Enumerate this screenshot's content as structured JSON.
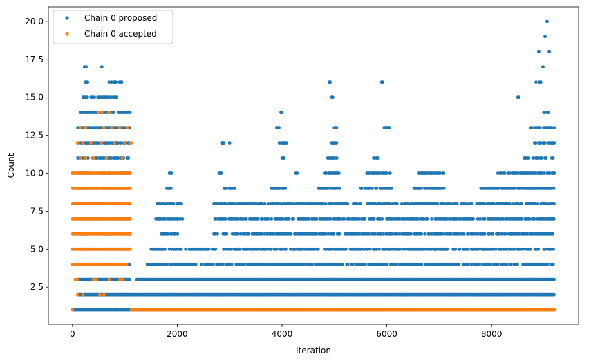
{
  "chart_data": {
    "type": "scatter",
    "title": "",
    "xlabel": "Iteration",
    "ylabel": "Count",
    "xlim": [
      -460,
      9660
    ],
    "ylim": [
      0.05,
      20.95
    ],
    "xticks": [
      0,
      2000,
      4000,
      6000,
      8000
    ],
    "yticks": [
      2.5,
      5.0,
      7.5,
      10.0,
      12.5,
      15.0,
      17.5,
      20.0
    ],
    "xtick_labels": [
      "0",
      "2000",
      "4000",
      "6000",
      "8000"
    ],
    "ytick_labels": [
      "2.5",
      "5.0",
      "7.5",
      "10.0",
      "12.5",
      "15.0",
      "17.5",
      "20.0"
    ],
    "grid": false,
    "legend_position": "top-left",
    "x_total": 9200,
    "series": [
      {
        "name": "Chain 0 proposed",
        "color": "#1f77b4",
        "description_of_density": "dense bands per integer count",
        "bands": [
          {
            "y": 1,
            "ranges": [
              [
                0,
                9200
              ]
            ]
          },
          {
            "y": 2,
            "ranges": [
              [
                100,
                1100
              ],
              [
                1120,
                9200
              ]
            ]
          },
          {
            "y": 3,
            "ranges": [
              [
                100,
                1100
              ],
              [
                1230,
                9200
              ]
            ]
          },
          {
            "y": 4,
            "ranges": [
              [
                100,
                1100
              ],
              [
                1430,
                9200
              ]
            ]
          },
          {
            "y": 5,
            "ranges": [
              [
                100,
                1100
              ],
              [
                1500,
                9200
              ]
            ]
          },
          {
            "y": 6,
            "ranges": [
              [
                100,
                1100
              ],
              [
                1700,
                2100
              ],
              [
                2700,
                9200
              ]
            ]
          },
          {
            "y": 7,
            "ranges": [
              [
                100,
                1100
              ],
              [
                1550,
                2100
              ],
              [
                2700,
                9200
              ]
            ]
          },
          {
            "y": 8,
            "ranges": [
              [
                100,
                1100
              ],
              [
                1600,
                2100
              ],
              [
                2700,
                9200
              ]
            ]
          },
          {
            "y": 9,
            "ranges": [
              [
                100,
                1100
              ],
              [
                1800,
                1900
              ],
              [
                2900,
                3100
              ],
              [
                3800,
                4100
              ],
              [
                4700,
                5100
              ],
              [
                5500,
                6100
              ],
              [
                6500,
                7100
              ],
              [
                7800,
                9200
              ]
            ]
          },
          {
            "y": 10,
            "ranges": [
              [
                100,
                1100
              ],
              [
                1850,
                1900
              ],
              [
                2800,
                2850
              ],
              [
                4200,
                4300
              ],
              [
                4800,
                5100
              ],
              [
                5600,
                6100
              ],
              [
                6600,
                7100
              ],
              [
                8100,
                9200
              ]
            ]
          },
          {
            "y": 11,
            "ranges": [
              [
                100,
                1100
              ],
              [
                4000,
                4050
              ],
              [
                4850,
                5050
              ],
              [
                5750,
                5850
              ],
              [
                8600,
                9200
              ]
            ]
          },
          {
            "y": 12,
            "ranges": [
              [
                100,
                1100
              ],
              [
                2850,
                2900
              ],
              [
                3950,
                4100
              ],
              [
                4950,
                5050
              ],
              [
                8800,
                9200
              ]
            ]
          },
          {
            "y": 13,
            "ranges": [
              [
                100,
                1100
              ],
              [
                3900,
                3950
              ],
              [
                5000,
                5050
              ],
              [
                5950,
                6050
              ],
              [
                8750,
                9200
              ]
            ]
          },
          {
            "y": 14,
            "ranges": [
              [
                150,
                1100
              ],
              [
                3980,
                4000
              ],
              [
                9000,
                9100
              ]
            ]
          },
          {
            "y": 15,
            "ranges": [
              [
                200,
                850
              ],
              [
                4950,
                4970
              ],
              [
                8500,
                8520
              ]
            ]
          },
          {
            "y": 16,
            "ranges": [
              [
                250,
                300
              ],
              [
                700,
                950
              ],
              [
                4900,
                4920
              ],
              [
                5900,
                5920
              ],
              [
                8850,
                8950
              ]
            ]
          }
        ],
        "sparse_points": [
          {
            "x": 0,
            "y": 10
          },
          {
            "x": 230,
            "y": 17
          },
          {
            "x": 260,
            "y": 17
          },
          {
            "x": 560,
            "y": 17
          },
          {
            "x": 8900,
            "y": 18
          },
          {
            "x": 9100,
            "y": 18
          },
          {
            "x": 8980,
            "y": 17
          },
          {
            "x": 9020,
            "y": 19
          },
          {
            "x": 9060,
            "y": 20
          },
          {
            "x": 3980,
            "y": 14
          },
          {
            "x": 4050,
            "y": 12
          },
          {
            "x": 6000,
            "y": 13
          },
          {
            "x": 6050,
            "y": 13
          },
          {
            "x": 2850,
            "y": 12
          },
          {
            "x": 3000,
            "y": 12
          },
          {
            "x": 1840,
            "y": 9
          },
          {
            "x": 1880,
            "y": 9
          }
        ]
      },
      {
        "name": "Chain 0 accepted",
        "color": "#ff7f0e",
        "bands": [
          {
            "y": 1,
            "ranges": [
              [
                1120,
                9200
              ]
            ]
          },
          {
            "y": 4,
            "ranges": [
              [
                0,
                1050
              ]
            ]
          },
          {
            "y": 5,
            "ranges": [
              [
                0,
                1100
              ]
            ]
          },
          {
            "y": 6,
            "ranges": [
              [
                0,
                1100
              ]
            ]
          },
          {
            "y": 7,
            "ranges": [
              [
                0,
                1100
              ]
            ]
          },
          {
            "y": 8,
            "ranges": [
              [
                0,
                1100
              ]
            ]
          },
          {
            "y": 9,
            "ranges": [
              [
                0,
                1100
              ]
            ]
          },
          {
            "y": 10,
            "ranges": [
              [
                0,
                1100
              ]
            ]
          }
        ],
        "sparse_points": [
          {
            "x": 0,
            "y": 1
          },
          {
            "x": 50,
            "y": 3
          },
          {
            "x": 90,
            "y": 3
          },
          {
            "x": 400,
            "y": 3
          },
          {
            "x": 460,
            "y": 3
          },
          {
            "x": 700,
            "y": 3
          },
          {
            "x": 900,
            "y": 3
          },
          {
            "x": 960,
            "y": 3
          },
          {
            "x": 100,
            "y": 2
          },
          {
            "x": 200,
            "y": 2
          },
          {
            "x": 520,
            "y": 2
          },
          {
            "x": 600,
            "y": 2
          },
          {
            "x": 150,
            "y": 11
          },
          {
            "x": 250,
            "y": 11
          },
          {
            "x": 400,
            "y": 11
          },
          {
            "x": 650,
            "y": 11
          },
          {
            "x": 950,
            "y": 11
          },
          {
            "x": 100,
            "y": 12
          },
          {
            "x": 200,
            "y": 12
          },
          {
            "x": 350,
            "y": 12
          },
          {
            "x": 550,
            "y": 12
          },
          {
            "x": 800,
            "y": 12
          },
          {
            "x": 1000,
            "y": 12
          },
          {
            "x": 1100,
            "y": 12
          },
          {
            "x": 150,
            "y": 13
          },
          {
            "x": 250,
            "y": 13
          },
          {
            "x": 600,
            "y": 13
          },
          {
            "x": 750,
            "y": 13
          },
          {
            "x": 900,
            "y": 13
          },
          {
            "x": 1050,
            "y": 13
          },
          {
            "x": 500,
            "y": 14
          },
          {
            "x": 560,
            "y": 14
          },
          {
            "x": 700,
            "y": 14
          },
          {
            "x": 1120,
            "y": 12
          }
        ]
      }
    ]
  }
}
